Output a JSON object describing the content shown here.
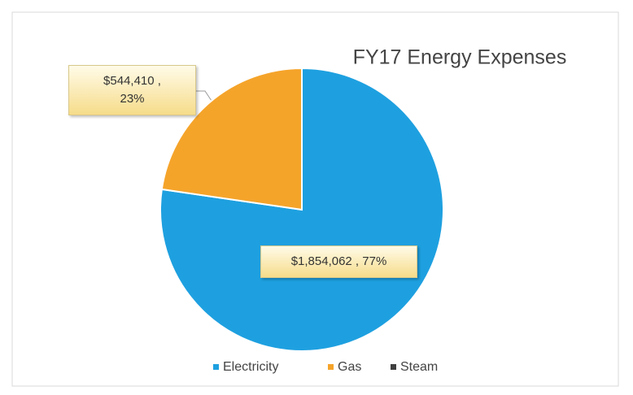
{
  "chart_data": {
    "type": "pie",
    "title": "FY17 Energy Expenses",
    "categories": [
      "Electricity",
      "Gas",
      "Steam"
    ],
    "values": [
      1854062,
      544410,
      0
    ],
    "value_labels": [
      "$1,854,062 , 77%",
      "$544,410 ,\n23%",
      null
    ],
    "colors": [
      "#1ea0e0",
      "#f5a42a",
      "#404040"
    ],
    "legend": "bottom"
  }
}
